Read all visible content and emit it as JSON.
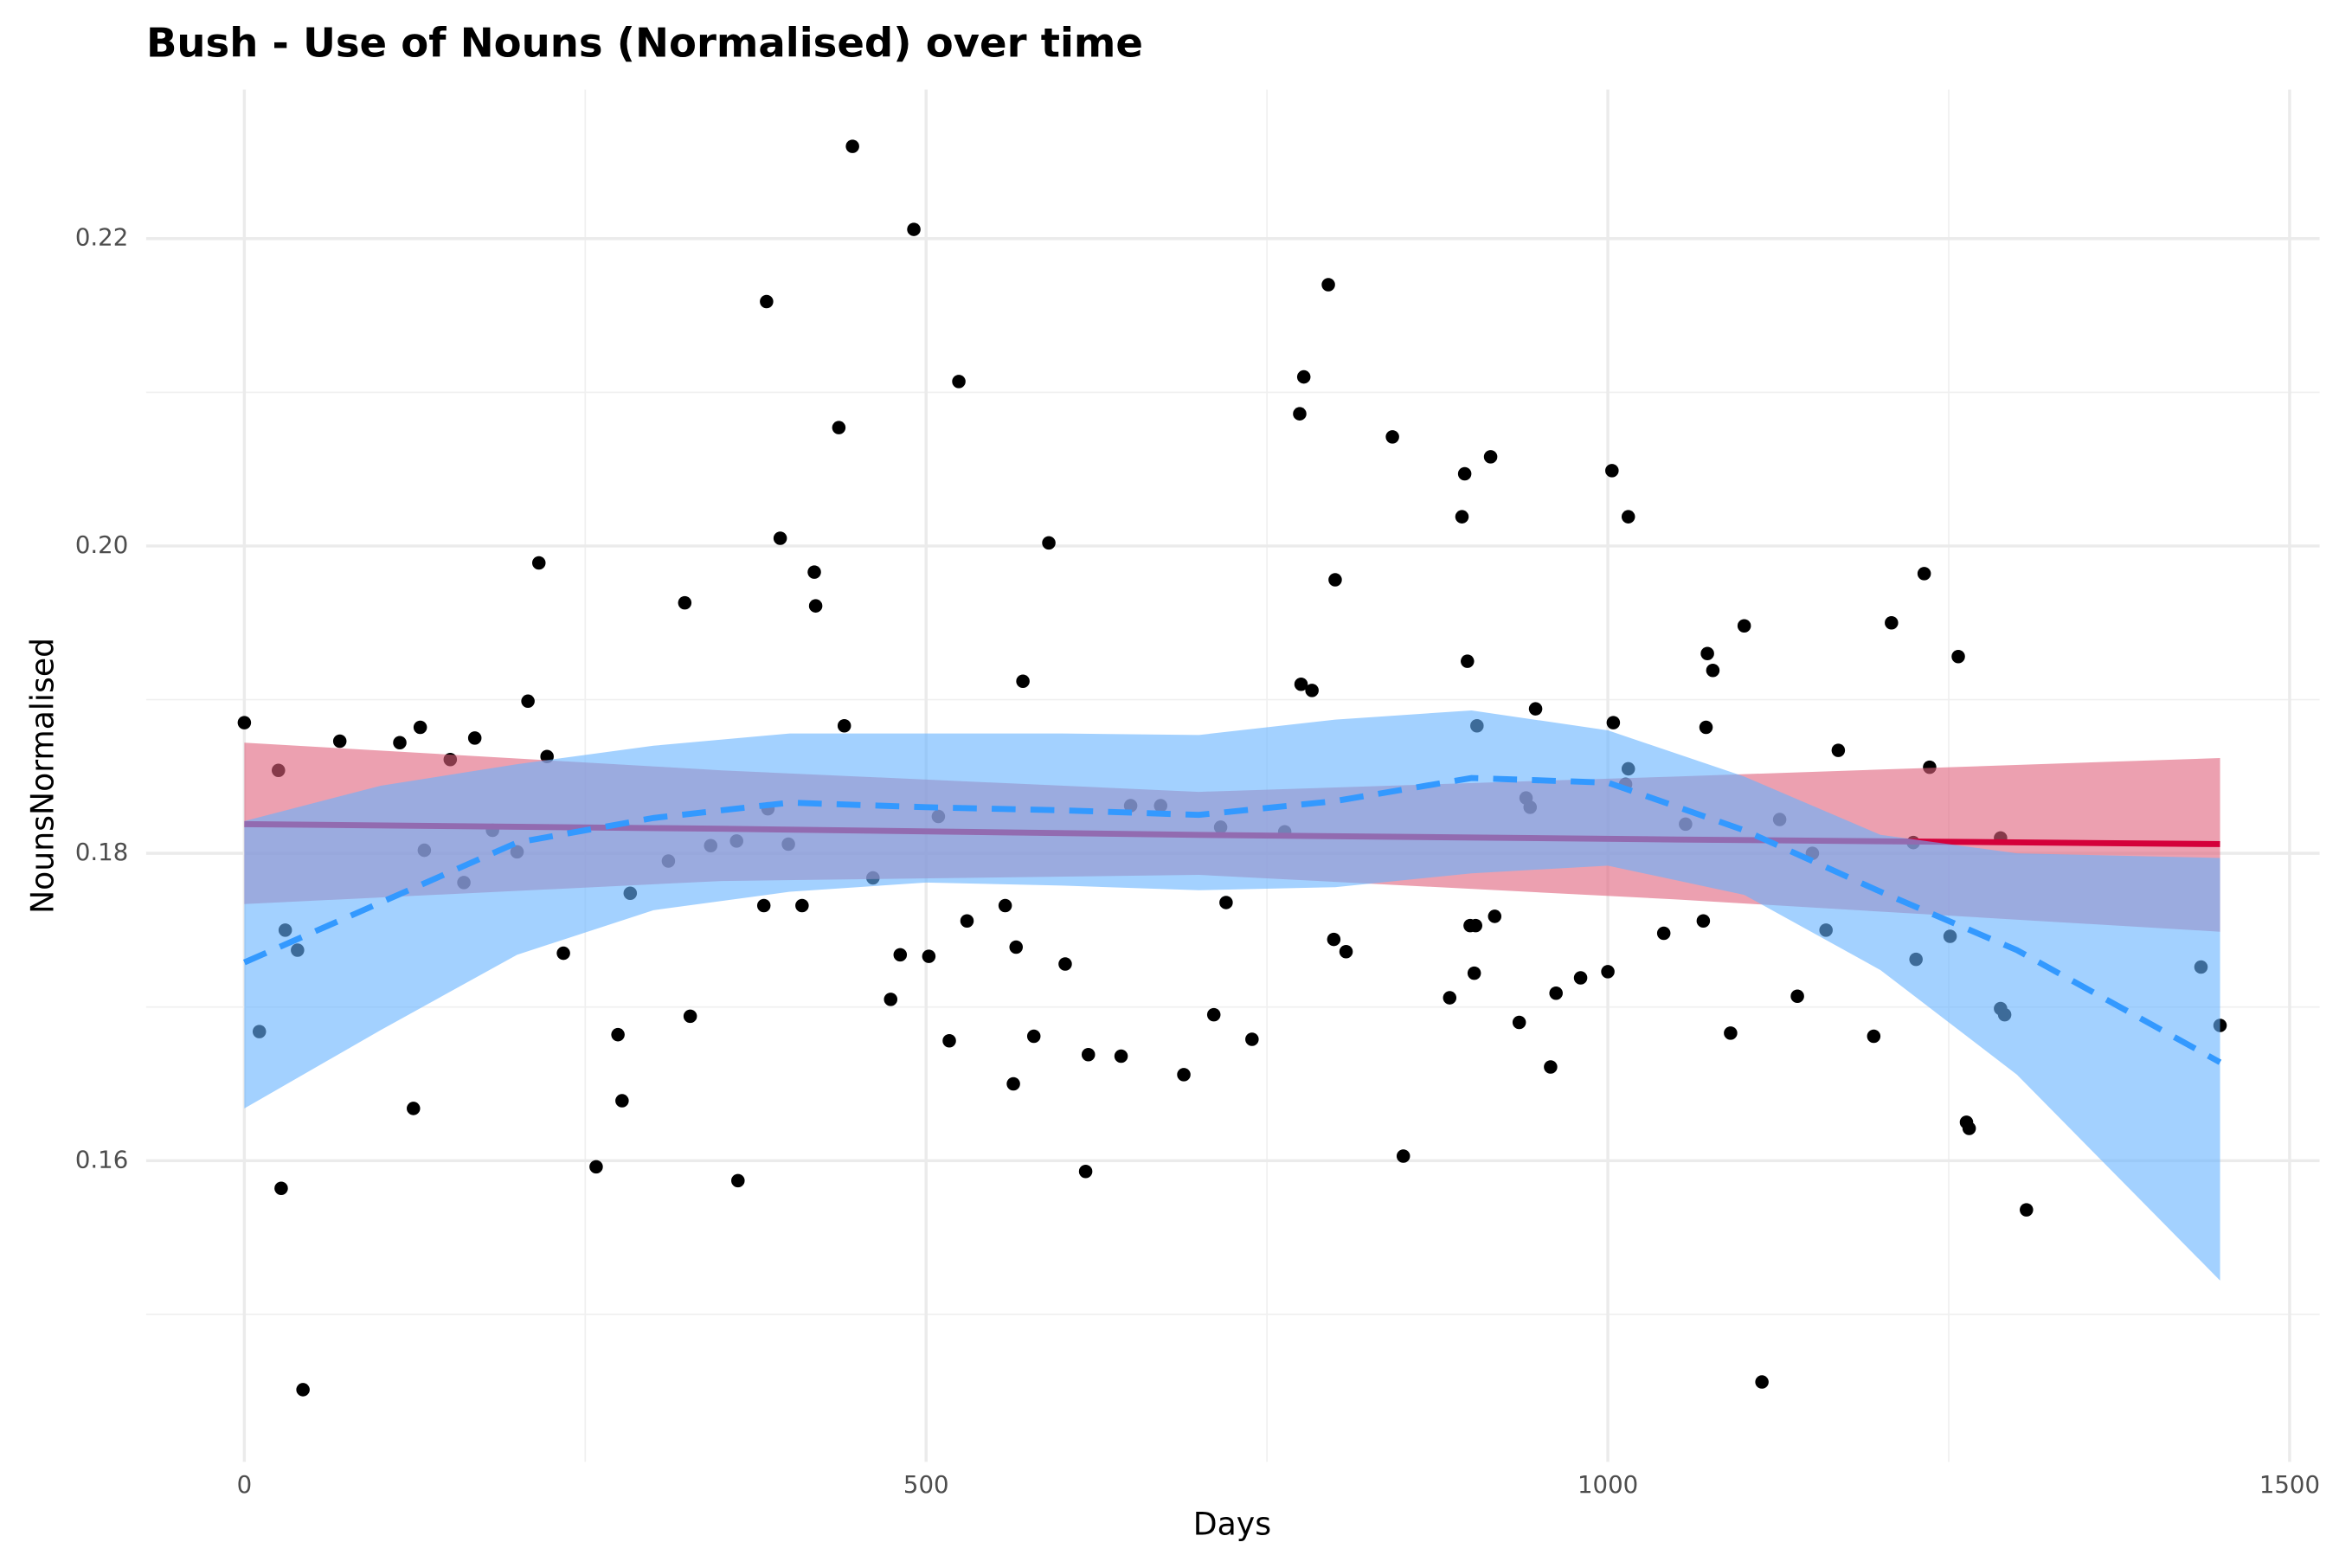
{
  "chart_data": {
    "type": "scatter",
    "title": "Bush - Use of Nouns (Normalised) over time",
    "x_label": "Days",
    "y_label": "NounsNormalised",
    "xlim": [
      -72,
      1522
    ],
    "ylim": [
      0.1404,
      0.2297
    ],
    "xticks": [
      0,
      500,
      1000,
      1500
    ],
    "yticks": [
      0.16,
      0.18,
      {
        "value": 0.2,
        "label": "0.20"
      },
      0.22
    ],
    "x_minor_ticks": [
      250,
      750,
      1250
    ],
    "y_minor_ticks": [
      0.15,
      0.17,
      0.19,
      0.21
    ],
    "grid": true,
    "points": {
      "color": "#000000",
      "x": [
        0,
        11,
        25,
        27,
        30,
        39,
        43,
        70,
        114,
        124,
        129,
        132,
        151,
        161,
        169,
        182,
        200,
        208,
        216,
        222,
        234,
        258,
        274,
        277,
        283,
        311,
        323,
        327,
        342,
        361,
        362,
        381,
        383,
        384,
        393,
        399,
        409,
        418,
        419,
        436,
        440,
        446,
        461,
        474,
        481,
        491,
        502,
        509,
        517,
        524,
        530,
        558,
        564,
        566,
        571,
        579,
        590,
        602,
        617,
        619,
        643,
        650,
        672,
        689,
        711,
        716,
        720,
        739,
        763,
        774,
        775,
        777,
        783,
        795,
        799,
        800,
        808,
        842,
        850,
        884,
        893,
        895,
        897,
        899,
        902,
        903,
        904,
        914,
        917,
        935,
        940,
        943,
        947,
        958,
        962,
        980,
        1000,
        1003,
        1004,
        1013,
        1015,
        1015,
        1041,
        1057,
        1070,
        1072,
        1073,
        1077,
        1090,
        1100,
        1113,
        1126,
        1139,
        1150,
        1160,
        1169,
        1195,
        1208,
        1224,
        1226,
        1232,
        1236,
        1251,
        1257,
        1263,
        1265,
        1288,
        1288,
        1291,
        1307,
        1435,
        1449
      ],
      "values": [
        0.1885,
        0.1684,
        0.1854,
        0.1582,
        0.175,
        0.1737,
        0.1451,
        0.1873,
        0.1872,
        0.1634,
        0.1882,
        0.1802,
        0.1861,
        0.1781,
        0.1875,
        0.1815,
        0.1801,
        0.1899,
        0.1989,
        0.1863,
        0.1735,
        0.1596,
        0.1682,
        0.1639,
        0.1774,
        0.1795,
        0.1963,
        0.1694,
        0.1805,
        0.1808,
        0.1587,
        0.1766,
        0.2159,
        0.1829,
        0.2005,
        0.1806,
        0.1766,
        0.1983,
        0.1961,
        0.2077,
        0.1883,
        0.226,
        0.1784,
        0.1705,
        0.1734,
        0.2206,
        0.1733,
        0.1824,
        0.1678,
        0.2107,
        0.1756,
        0.1766,
        0.165,
        0.1739,
        0.1912,
        0.1681,
        0.2002,
        0.1728,
        0.1593,
        0.1669,
        0.1668,
        0.1831,
        0.1831,
        0.1656,
        0.1695,
        0.1817,
        0.1768,
        0.1679,
        0.1814,
        0.2086,
        0.191,
        0.211,
        0.1906,
        0.217,
        0.1744,
        0.1978,
        0.1736,
        0.2071,
        0.1603,
        0.1706,
        0.2019,
        0.2047,
        0.1925,
        0.1753,
        0.1722,
        0.1753,
        0.1883,
        0.2058,
        0.1759,
        0.169,
        0.1836,
        0.183,
        0.1894,
        0.1661,
        0.1709,
        0.1719,
        0.1723,
        0.2049,
        0.1885,
        0.1845,
        0.2019,
        0.1855,
        0.1748,
        0.1819,
        0.1756,
        0.1882,
        0.193,
        0.1919,
        0.1683,
        0.1948,
        0.1456,
        0.1822,
        0.1707,
        0.18,
        0.175,
        0.1867,
        0.1681,
        0.195,
        0.1807,
        0.1731,
        0.1982,
        0.1856,
        0.1746,
        0.1928,
        0.1625,
        0.1621,
        0.181,
        0.1699,
        0.1695,
        0.1568,
        0.1726,
        0.1688
      ]
    },
    "linear_fit": {
      "color": "#d4003a",
      "band_color": "#e0607c",
      "x": [
        0,
        350,
        700,
        1050,
        1449
      ],
      "values": [
        0.1819,
        0.1816,
        0.1812,
        0.1809,
        0.1806
      ],
      "upper": [
        0.1872,
        0.1854,
        0.184,
        0.185,
        0.1862
      ],
      "lower": [
        0.1767,
        0.1782,
        0.1786,
        0.177,
        0.1749
      ]
    },
    "loess_fit": {
      "color": "#3399ff",
      "band_color": "#66b3ff",
      "dashed": true,
      "x": [
        0,
        100,
        200,
        300,
        400,
        500,
        600,
        700,
        800,
        900,
        1000,
        1100,
        1200,
        1300,
        1449
      ],
      "values": [
        0.1729,
        0.1768,
        0.1807,
        0.1823,
        0.1833,
        0.183,
        0.1828,
        0.1825,
        0.1834,
        0.1849,
        0.1846,
        0.1815,
        0.1775,
        0.1737,
        0.1664
      ],
      "upper": [
        0.1821,
        0.1844,
        0.1858,
        0.187,
        0.1878,
        0.1878,
        0.1878,
        0.1877,
        0.1887,
        0.1893,
        0.188,
        0.185,
        0.1812,
        0.18,
        0.1797
      ],
      "lower": [
        0.1634,
        0.1685,
        0.1734,
        0.1763,
        0.1775,
        0.1781,
        0.1779,
        0.1776,
        0.1778,
        0.1787,
        0.1792,
        0.1773,
        0.1724,
        0.1656,
        0.1522
      ]
    }
  }
}
